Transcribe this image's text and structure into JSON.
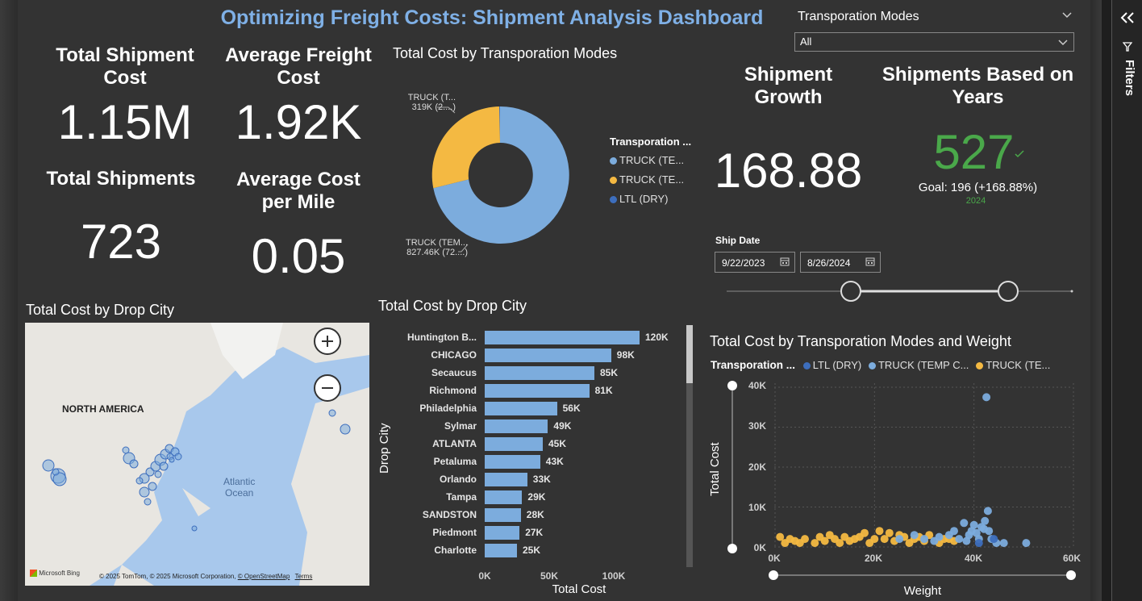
{
  "dashboard_title": "Optimizing Freight Costs: Shipment Analysis Dashboard",
  "kpis": {
    "total_shipment_cost": {
      "label": "Total Shipment Cost",
      "value": "1.15M"
    },
    "average_freight_cost": {
      "label": "Average Freight Cost",
      "value": "1.92K"
    },
    "total_shipments": {
      "label": "Total Shipments",
      "value": "723"
    },
    "average_cost_per_mile": {
      "label": "Average Cost per Mile",
      "value": "0.05"
    },
    "shipment_growth": {
      "label": "Shipment Growth",
      "value": "168.88"
    },
    "shipments_based_on_years": {
      "label": "Shipments Based on Years",
      "value": "527",
      "goal": "Goal: 196 (+168.88%)",
      "year": "2024",
      "check_icon": "check-icon"
    }
  },
  "slicer_modes": {
    "title": "Transporation Modes",
    "selected": "All"
  },
  "ship_date": {
    "title": "Ship Date",
    "start": "9/22/2023",
    "end": "8/26/2024"
  },
  "filters_pane": {
    "label": "Filters"
  },
  "donut": {
    "title": "Total Cost by Transporation Modes",
    "legend_title": "Transporation ...",
    "legend": [
      "TRUCK (TE...",
      "TRUCK (TE...",
      "LTL (DRY)"
    ],
    "label_top_1": "TRUCK (T...",
    "label_top_2": "319K (2....)",
    "label_bottom_1": "TRUCK (TEM...",
    "label_bottom_2": "827.46K (72....)",
    "colors": [
      "#7cacdd",
      "#f4b942",
      "#3d6ebd"
    ]
  },
  "map": {
    "title": "Total Cost by Drop City",
    "continent": "NORTH AMERICA",
    "ocean_1": "Atlantic",
    "ocean_2": "Ocean",
    "bing": "Microsoft Bing",
    "attribution": "© 2025 TomTom, © 2025 Microsoft Corporation,",
    "osm": "© OpenStreetMap",
    "terms": "Terms"
  },
  "bar_chart": {
    "title": "Total Cost by Drop City",
    "ylabel": "Drop City",
    "xlabel": "Total Cost",
    "ticks": [
      "0K",
      "50K",
      "100K"
    ]
  },
  "scatter": {
    "title": "Total Cost by Transporation Modes and Weight",
    "legend_title": "Transporation ...",
    "legend": [
      "LTL (DRY)",
      "TRUCK (TEMP C...",
      "TRUCK (TE..."
    ],
    "ylabel": "Total Cost",
    "xlabel": "Weight",
    "yticks": [
      "40K",
      "30K",
      "20K",
      "10K",
      "0K"
    ],
    "xticks": [
      "0K",
      "20K",
      "40K",
      "60K"
    ]
  },
  "chart_data": [
    {
      "type": "pie",
      "title": "Total Cost by Transporation Modes",
      "categories": [
        "TRUCK (TEM...)",
        "TRUCK (T...)",
        "LTL (DRY)"
      ],
      "values": [
        827.46,
        319,
        3
      ],
      "unit": "K"
    },
    {
      "type": "bar",
      "title": "Total Cost by Drop City",
      "orientation": "horizontal",
      "categories": [
        "Huntington B...",
        "CHICAGO",
        "Secaucus",
        "Richmond",
        "Philadelphia",
        "Sylmar",
        "ATLANTA",
        "Petaluma",
        "Orlando",
        "Tampa",
        "SANDSTON",
        "Piedmont",
        "Charlotte"
      ],
      "values": [
        120,
        98,
        85,
        81,
        56,
        49,
        45,
        43,
        33,
        29,
        28,
        27,
        25
      ],
      "labels": [
        "120K",
        "98K",
        "85K",
        "81K",
        "56K",
        "49K",
        "45K",
        "43K",
        "33K",
        "29K",
        "28K",
        "27K",
        "25K"
      ],
      "xlim": [
        0,
        125
      ],
      "xlabel": "Total Cost",
      "ylabel": "Drop City"
    },
    {
      "type": "scatter",
      "title": "Total Cost by Transporation Modes and Weight",
      "xlim": [
        0,
        60
      ],
      "ylim": [
        0,
        40
      ],
      "xlabel": "Weight",
      "ylabel": "Total Cost",
      "series": [
        {
          "name": "LTL (DRY)",
          "color": "#3d6ebd",
          "points": [
            [
              41,
              1
            ],
            [
              44,
              2
            ]
          ]
        },
        {
          "name": "TRUCK (TEMP C...",
          "color": "#7cacdd",
          "points": [
            [
              42.5,
              37.5
            ],
            [
              38,
              6
            ],
            [
              42,
              4.5
            ],
            [
              42.8,
              9
            ],
            [
              40,
              5.5
            ],
            [
              35,
              3
            ],
            [
              37,
              2
            ],
            [
              39,
              3
            ],
            [
              41,
              2
            ],
            [
              43,
              4
            ],
            [
              44.5,
              1
            ],
            [
              46,
              1
            ],
            [
              50.5,
              1
            ],
            [
              30,
              2
            ],
            [
              25,
              2
            ],
            [
              32,
              1.5
            ],
            [
              28,
              3
            ],
            [
              36,
              4
            ],
            [
              33,
              2.5
            ],
            [
              38.5,
              1.5
            ],
            [
              40.5,
              3.5
            ],
            [
              42.2,
              6.5
            ],
            [
              43.5,
              2
            ],
            [
              41.5,
              5
            ],
            [
              39.5,
              4
            ]
          ]
        },
        {
          "name": "TRUCK (TE...",
          "color": "#f4b942",
          "points": [
            [
              1,
              2.5
            ],
            [
              2,
              1
            ],
            [
              4,
              1.5
            ],
            [
              6,
              2
            ],
            [
              8,
              1
            ],
            [
              10,
              1.5
            ],
            [
              12,
              2
            ],
            [
              14,
              2.5
            ],
            [
              16,
              2
            ],
            [
              18,
              3.5
            ],
            [
              20,
              2
            ],
            [
              21,
              4
            ],
            [
              22,
              2
            ],
            [
              24,
              1.5
            ],
            [
              25,
              3
            ],
            [
              26,
              2.5
            ],
            [
              27,
              1
            ],
            [
              28,
              2
            ],
            [
              29,
              2.5
            ],
            [
              30,
              1.5
            ],
            [
              31,
              3
            ],
            [
              33,
              1
            ],
            [
              34,
              2
            ],
            [
              35,
              2
            ],
            [
              36,
              1.5
            ],
            [
              11,
              3
            ],
            [
              13,
              1
            ],
            [
              15,
              1.5
            ],
            [
              17,
              2.5
            ],
            [
              19,
              1
            ],
            [
              23,
              3.5
            ],
            [
              9,
              2.5
            ],
            [
              5,
              1
            ],
            [
              3,
              2
            ]
          ]
        }
      ]
    }
  ]
}
